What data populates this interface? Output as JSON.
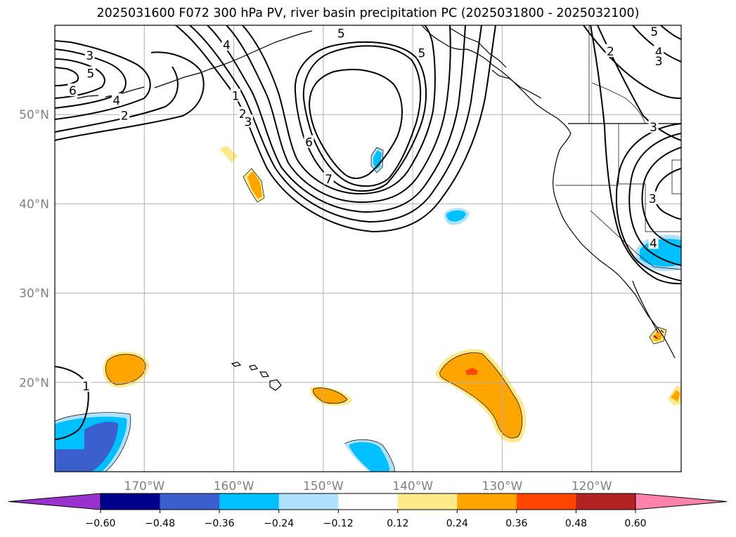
{
  "title": "2025031600 F072 300 hPa PV, river basin precipitation PC (2025031800 - 2025032100)",
  "map": {
    "lon_range": [
      -180,
      -110
    ],
    "lat_range": [
      10,
      60
    ],
    "lat_labels": [
      {
        "lat": 50,
        "text": "50°N"
      },
      {
        "lat": 40,
        "text": "40°N"
      },
      {
        "lat": 30,
        "text": "30°N"
      },
      {
        "lat": 20,
        "text": "20°N"
      }
    ],
    "lon_labels": [
      {
        "lon": -170,
        "text": "170°W"
      },
      {
        "lon": -160,
        "text": "160°W"
      },
      {
        "lon": -150,
        "text": "150°W"
      },
      {
        "lon": -140,
        "text": "140°W"
      },
      {
        "lon": -130,
        "text": "130°W"
      },
      {
        "lon": -120,
        "text": "120°W"
      }
    ],
    "grid_color": "#b0b0b0",
    "contour_labels": [
      {
        "text": "3",
        "lon": -176.1,
        "lat": 56.6
      },
      {
        "text": "5",
        "lon": -176.0,
        "lat": 54.6
      },
      {
        "text": "6",
        "lon": -178.0,
        "lat": 52.7
      },
      {
        "text": "4",
        "lon": -173.1,
        "lat": 51.6
      },
      {
        "text": "2",
        "lon": -172.2,
        "lat": 49.9
      },
      {
        "text": "4",
        "lon": -160.8,
        "lat": 57.8
      },
      {
        "text": "1",
        "lon": -159.8,
        "lat": 52.1
      },
      {
        "text": "2",
        "lon": -159.0,
        "lat": 50.1
      },
      {
        "text": "3",
        "lon": -158.4,
        "lat": 49.2
      },
      {
        "text": "5",
        "lon": -148.0,
        "lat": 59.1
      },
      {
        "text": "5",
        "lon": -139.0,
        "lat": 56.9
      },
      {
        "text": "6",
        "lon": -151.6,
        "lat": 46.9
      },
      {
        "text": "7",
        "lon": -149.4,
        "lat": 42.8
      },
      {
        "text": "2",
        "lon": -117.9,
        "lat": 57.1
      },
      {
        "text": "5",
        "lon": -113.0,
        "lat": 59.3
      },
      {
        "text": "4",
        "lon": -112.5,
        "lat": 57.0
      },
      {
        "text": "3",
        "lon": -112.5,
        "lat": 56.0
      },
      {
        "text": "3",
        "lon": -113.1,
        "lat": 48.6
      },
      {
        "text": "3",
        "lon": -113.2,
        "lat": 40.6
      },
      {
        "text": "4",
        "lon": -113.1,
        "lat": 35.6
      },
      {
        "text": "1",
        "lon": -176.5,
        "lat": 19.6
      }
    ]
  },
  "colorbar": {
    "ticks": [
      "−0.60",
      "−0.48",
      "−0.36",
      "−0.24",
      "−0.12",
      "0.12",
      "0.24",
      "0.36",
      "0.48",
      "0.60"
    ],
    "colors": [
      "#9932cc",
      "#00008b",
      "#3a5fcd",
      "#00bfff",
      "#b0e2ff",
      "#ffffff",
      "#ffe98a",
      "#ffa500",
      "#ff4500",
      "#b22222",
      "#ff82ab"
    ]
  }
}
